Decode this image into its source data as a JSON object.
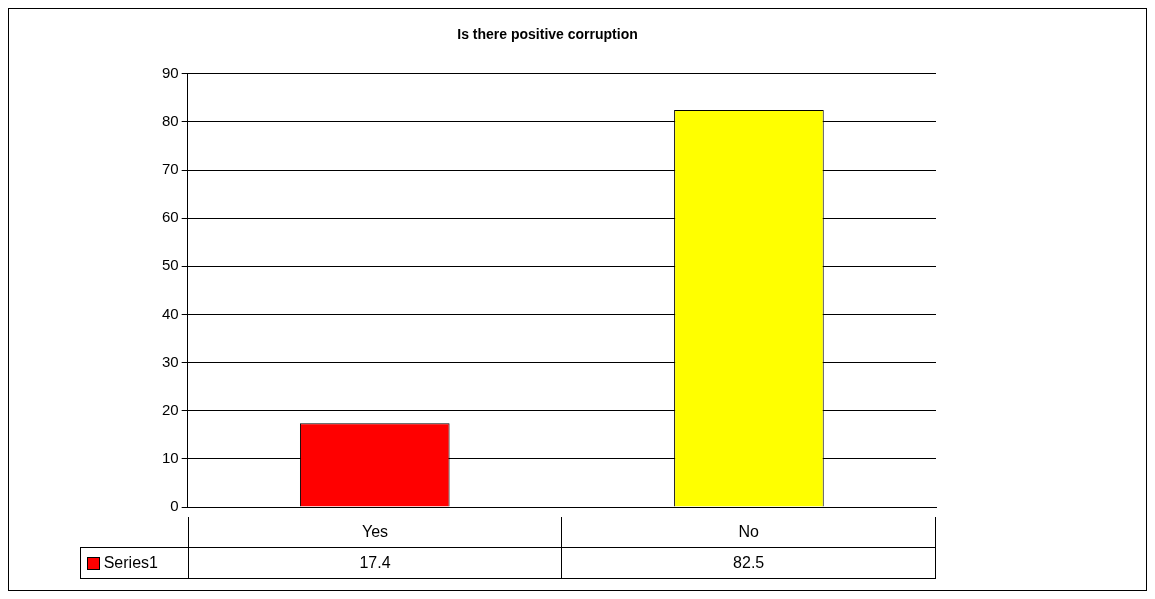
{
  "chart_data": {
    "type": "bar",
    "title": "Is there positive corruption",
    "categories": [
      "Yes",
      "No"
    ],
    "series": [
      {
        "name": "Series1",
        "color": "#ff0000",
        "colors": [
          "#ff0000",
          "#ffff00"
        ],
        "values": [
          17.4,
          82.5
        ]
      }
    ],
    "ylim": [
      0,
      90
    ],
    "yticks": [
      0,
      10,
      20,
      30,
      40,
      50,
      60,
      70,
      80,
      90
    ],
    "grid": "y",
    "legend": "bottom left",
    "data_labels": true
  }
}
